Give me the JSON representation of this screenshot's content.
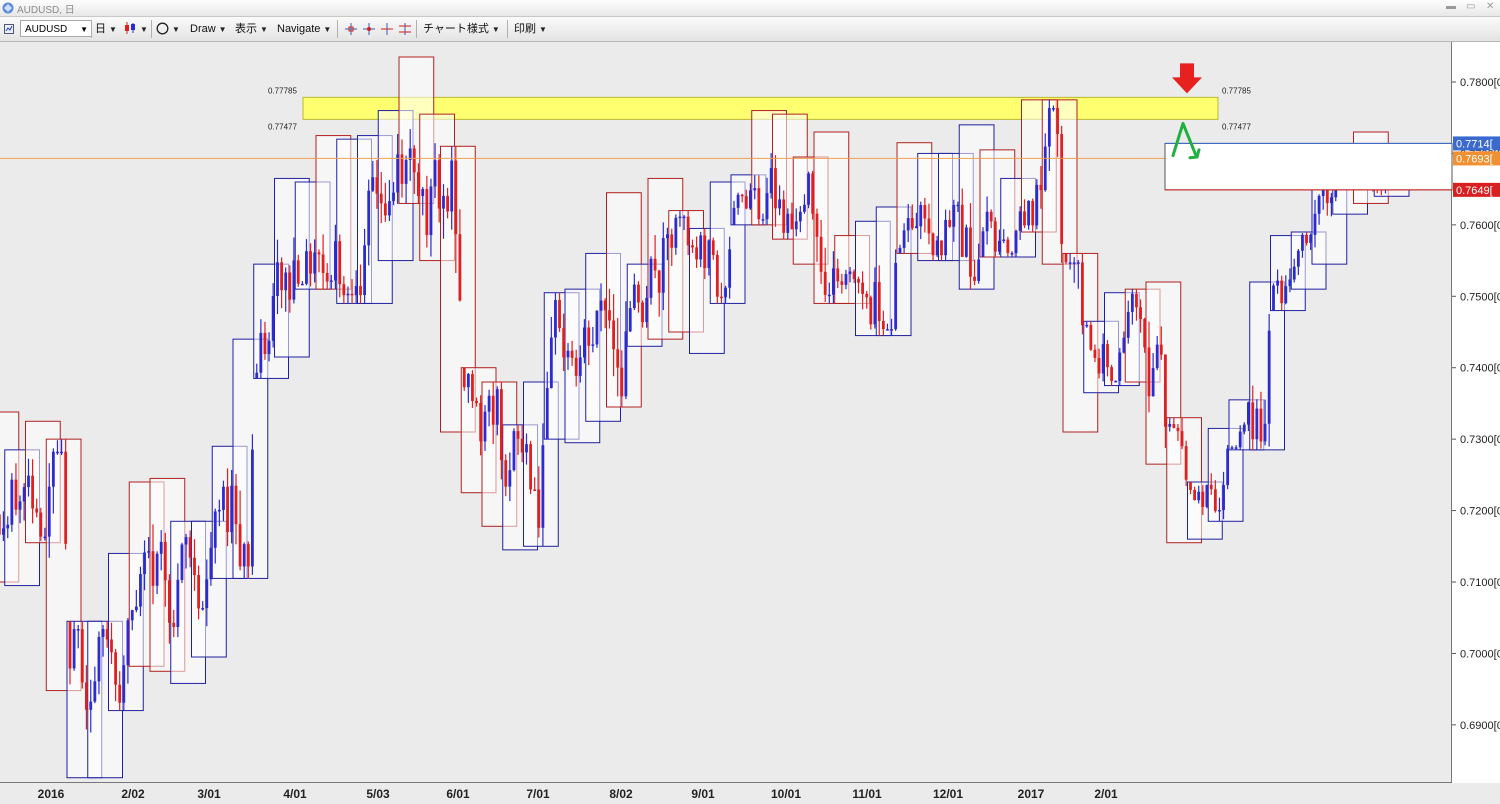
{
  "window": {
    "title": "AUDUSD, 日"
  },
  "toolbar": {
    "symbol": "AUDUSD",
    "timeframe": "日",
    "draw": "Draw",
    "view": "表示",
    "navigate": "Navigate",
    "chart_style": "チャート様式",
    "print": "印刷"
  },
  "colors": {
    "bull_candle": "#2b2bd0",
    "bear_candle": "#e02020",
    "bull_box": "#2020a0",
    "bear_box": "#b02020",
    "zone_fill": "#ffff70",
    "current_line": "#f0a050",
    "arrow_red": "#e82020",
    "arrow_green": "#20b040",
    "background": "#ebebeb"
  },
  "chart_data": {
    "type": "candlestick",
    "symbol": "AUDUSD",
    "timeframe": "日",
    "ylim": [
      0.682,
      0.7856
    ],
    "yticks": [
      "0.7800[0",
      "0.7700[0",
      "0.7600[0",
      "0.7500[0",
      "0.7400[0",
      "0.7300[0",
      "0.7200[0",
      "0.7100[0",
      "0.7000[0",
      "0.6900[0"
    ],
    "yticks_values": [
      0.78,
      0.77,
      0.76,
      0.75,
      0.74,
      0.73,
      0.72,
      0.71,
      0.7,
      0.69
    ],
    "xticks": [
      "2016",
      "2/02",
      "3/01",
      "4/01",
      "5/03",
      "6/01",
      "7/01",
      "8/02",
      "9/01",
      "10/01",
      "11/01",
      "12/01",
      "2017",
      "2/01"
    ],
    "resistance_zone": {
      "upper": 0.77785,
      "lower": 0.77477,
      "upper_label": "0.77785",
      "lower_label": "0.77477"
    },
    "price_markers": [
      {
        "label": "0.7714[",
        "value": 0.7714,
        "color": "#3a6ad0"
      },
      {
        "label": "0.7693[",
        "value": 0.7693,
        "color": "#f09030"
      },
      {
        "label": "0.7649[",
        "value": 0.7649,
        "color": "#d82020"
      }
    ],
    "weekly_ranges": [
      {
        "high": 0.7338,
        "low": 0.71
      },
      {
        "high": 0.7285,
        "low": 0.7095
      },
      {
        "high": 0.7325,
        "low": 0.7155
      },
      {
        "high": 0.73,
        "low": 0.6948
      },
      {
        "high": 0.7045,
        "low": 0.6826
      },
      {
        "high": 0.7045,
        "low": 0.6826
      },
      {
        "high": 0.714,
        "low": 0.692
      },
      {
        "high": 0.724,
        "low": 0.6982
      },
      {
        "high": 0.7245,
        "low": 0.6975
      },
      {
        "high": 0.7185,
        "low": 0.6958
      },
      {
        "high": 0.7185,
        "low": 0.6995
      },
      {
        "high": 0.729,
        "low": 0.7105
      },
      {
        "high": 0.744,
        "low": 0.7105
      },
      {
        "high": 0.7545,
        "low": 0.7385
      },
      {
        "high": 0.7665,
        "low": 0.7415
      },
      {
        "high": 0.766,
        "low": 0.751
      },
      {
        "high": 0.7725,
        "low": 0.751
      },
      {
        "high": 0.772,
        "low": 0.749
      },
      {
        "high": 0.7725,
        "low": 0.749
      },
      {
        "high": 0.776,
        "low": 0.755
      },
      {
        "high": 0.7835,
        "low": 0.763
      },
      {
        "high": 0.7755,
        "low": 0.755
      },
      {
        "high": 0.771,
        "low": 0.731
      },
      {
        "high": 0.74,
        "low": 0.7225
      },
      {
        "high": 0.738,
        "low": 0.7178
      },
      {
        "high": 0.732,
        "low": 0.7145
      },
      {
        "high": 0.738,
        "low": 0.715
      },
      {
        "high": 0.7505,
        "low": 0.73
      },
      {
        "high": 0.751,
        "low": 0.7295
      },
      {
        "high": 0.756,
        "low": 0.7325
      },
      {
        "high": 0.7645,
        "low": 0.7345
      },
      {
        "high": 0.7545,
        "low": 0.743
      },
      {
        "high": 0.7665,
        "low": 0.744
      },
      {
        "high": 0.762,
        "low": 0.745
      },
      {
        "high": 0.7595,
        "low": 0.742
      },
      {
        "high": 0.766,
        "low": 0.749
      },
      {
        "high": 0.767,
        "low": 0.76
      },
      {
        "high": 0.776,
        "low": 0.76
      },
      {
        "high": 0.7755,
        "low": 0.758
      },
      {
        "high": 0.7695,
        "low": 0.7545
      },
      {
        "high": 0.773,
        "low": 0.749
      },
      {
        "high": 0.7585,
        "low": 0.749
      },
      {
        "high": 0.7605,
        "low": 0.7445
      },
      {
        "high": 0.7625,
        "low": 0.7445
      },
      {
        "high": 0.7715,
        "low": 0.756
      },
      {
        "high": 0.77,
        "low": 0.755
      },
      {
        "high": 0.77,
        "low": 0.755
      },
      {
        "high": 0.774,
        "low": 0.751
      },
      {
        "high": 0.7705,
        "low": 0.7555
      },
      {
        "high": 0.7665,
        "low": 0.7555
      },
      {
        "high": 0.7775,
        "low": 0.759
      },
      {
        "high": 0.7775,
        "low": 0.7545
      },
      {
        "high": 0.756,
        "low": 0.731
      },
      {
        "high": 0.7465,
        "low": 0.7365
      },
      {
        "high": 0.7505,
        "low": 0.7375
      },
      {
        "high": 0.751,
        "low": 0.738
      },
      {
        "high": 0.752,
        "low": 0.7265
      },
      {
        "high": 0.733,
        "low": 0.7155
      },
      {
        "high": 0.724,
        "low": 0.716
      },
      {
        "high": 0.7315,
        "low": 0.7185
      },
      {
        "high": 0.7355,
        "low": 0.7285
      },
      {
        "high": 0.752,
        "low": 0.7285
      },
      {
        "high": 0.7585,
        "low": 0.748
      },
      {
        "high": 0.759,
        "low": 0.751
      },
      {
        "high": 0.7685,
        "low": 0.7545
      },
      {
        "high": 0.769,
        "low": 0.7615
      },
      {
        "high": 0.773,
        "low": 0.763
      },
      {
        "high": 0.7705,
        "low": 0.764
      }
    ],
    "grid": false
  }
}
